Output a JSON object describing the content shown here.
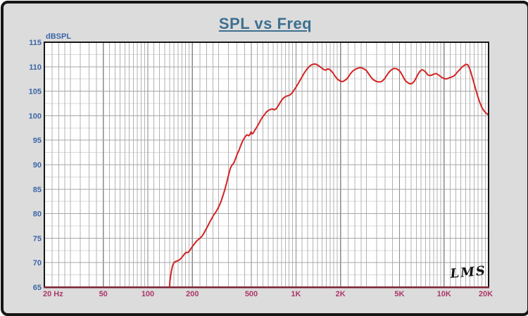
{
  "figure": {
    "background": "#dcdcdc",
    "border_color": "#161616"
  },
  "colors": {
    "title": "#3e7090",
    "y_tick_labels": "#3a66a8",
    "x_tick_labels": "#ab3769",
    "curve": "#d42222",
    "axis_baseline": "#7c2435"
  },
  "chart_data": {
    "type": "line",
    "title": "SPL vs Freq",
    "ylabel": "dBSPL",
    "xlabel": "Hz",
    "watermark": "LMS",
    "x_scale": "log",
    "xlim": [
      20,
      20000
    ],
    "ylim": [
      65,
      115
    ],
    "y_major_step": 5,
    "y_minor_step": 2.5,
    "grid": true,
    "legend": null,
    "x_ticks": [
      {
        "f": 20,
        "label": "20 Hz"
      },
      {
        "f": 50,
        "label": "50"
      },
      {
        "f": 100,
        "label": "100"
      },
      {
        "f": 200,
        "label": "200"
      },
      {
        "f": 500,
        "label": "500"
      },
      {
        "f": 1000,
        "label": "1K"
      },
      {
        "f": 2000,
        "label": "2K"
      },
      {
        "f": 5000,
        "label": "5K"
      },
      {
        "f": 10000,
        "label": "10K"
      },
      {
        "f": 20000,
        "label": "20K"
      }
    ],
    "y_ticks": [
      115,
      110,
      105,
      100,
      95,
      90,
      85,
      80,
      75,
      70,
      65
    ],
    "x_minor_per_decade": [
      1,
      1.1,
      1.2,
      1.3,
      1.4,
      1.5,
      1.6,
      1.7,
      1.8,
      1.9,
      2,
      2.25,
      2.5,
      2.75,
      3,
      3.5,
      4,
      4.5,
      5,
      5.5,
      6,
      6.5,
      7,
      7.5,
      8,
      8.5,
      9,
      9.5
    ],
    "series": [
      {
        "name": "SPL",
        "color": "#d42222",
        "points": [
          [
            140,
            65
          ],
          [
            141,
            66.3
          ],
          [
            142.5,
            67.3
          ],
          [
            144.5,
            68.4
          ],
          [
            147,
            69.4
          ],
          [
            150,
            70
          ],
          [
            154,
            70.25
          ],
          [
            158,
            70.35
          ],
          [
            163,
            70.55
          ],
          [
            168,
            70.9
          ],
          [
            173,
            71.4
          ],
          [
            178,
            71.9
          ],
          [
            182,
            72.1
          ],
          [
            186,
            72.05
          ],
          [
            191,
            72.4
          ],
          [
            196,
            72.9
          ],
          [
            201,
            73.4
          ],
          [
            207,
            73.9
          ],
          [
            213,
            74.4
          ],
          [
            219,
            74.7
          ],
          [
            225,
            75
          ],
          [
            232,
            75.4
          ],
          [
            239,
            76
          ],
          [
            246,
            76.7
          ],
          [
            254,
            77.5
          ],
          [
            262,
            78.3
          ],
          [
            270,
            79
          ],
          [
            278,
            79.7
          ],
          [
            286,
            80.2
          ],
          [
            294,
            80.8
          ],
          [
            302,
            81.5
          ],
          [
            311,
            82.4
          ],
          [
            320,
            83.5
          ],
          [
            330,
            84.8
          ],
          [
            340,
            86.2
          ],
          [
            350,
            87.8
          ],
          [
            360,
            89.2
          ],
          [
            370,
            89.9
          ],
          [
            380,
            90.3
          ],
          [
            394,
            91.5
          ],
          [
            403,
            92.3
          ],
          [
            412,
            92.9
          ],
          [
            425,
            94
          ],
          [
            438,
            94.9
          ],
          [
            452,
            95.6
          ],
          [
            466,
            96.1
          ],
          [
            480,
            95.9
          ],
          [
            490,
            96.2
          ],
          [
            498,
            96.7
          ],
          [
            506,
            96.3
          ],
          [
            516,
            96.5
          ],
          [
            527,
            97
          ],
          [
            545,
            97.7
          ],
          [
            562,
            98.4
          ],
          [
            580,
            99.2
          ],
          [
            598,
            99.8
          ],
          [
            616,
            100.3
          ],
          [
            634,
            100.8
          ],
          [
            655,
            101.1
          ],
          [
            674,
            101.3
          ],
          [
            695,
            101.35
          ],
          [
            716,
            101.2
          ],
          [
            740,
            101.5
          ],
          [
            762,
            102.1
          ],
          [
            786,
            102.8
          ],
          [
            811,
            103.4
          ],
          [
            838,
            103.8
          ],
          [
            862,
            104
          ],
          [
            890,
            104.1
          ],
          [
            917,
            104.3
          ],
          [
            945,
            104.7
          ],
          [
            975,
            105.3
          ],
          [
            1005,
            105.9
          ],
          [
            1037,
            106.6
          ],
          [
            1070,
            107.3
          ],
          [
            1103,
            108
          ],
          [
            1137,
            108.7
          ],
          [
            1173,
            109.3
          ],
          [
            1210,
            109.8
          ],
          [
            1247,
            110.2
          ],
          [
            1287,
            110.45
          ],
          [
            1326,
            110.55
          ],
          [
            1369,
            110.5
          ],
          [
            1410,
            110.3
          ],
          [
            1455,
            110
          ],
          [
            1500,
            109.7
          ],
          [
            1545,
            109.4
          ],
          [
            1590,
            109.3
          ],
          [
            1640,
            109.55
          ],
          [
            1690,
            109.45
          ],
          [
            1740,
            109.1
          ],
          [
            1790,
            108.6
          ],
          [
            1845,
            108
          ],
          [
            1900,
            107.5
          ],
          [
            1960,
            107.2
          ],
          [
            2020,
            107
          ],
          [
            2080,
            107
          ],
          [
            2140,
            107.2
          ],
          [
            2200,
            107.5
          ],
          [
            2270,
            108
          ],
          [
            2340,
            108.6
          ],
          [
            2414,
            109.1
          ],
          [
            2490,
            109.4
          ],
          [
            2568,
            109.6
          ],
          [
            2650,
            109.75
          ],
          [
            2732,
            109.8
          ],
          [
            2817,
            109.7
          ],
          [
            2906,
            109.5
          ],
          [
            2997,
            109.2
          ],
          [
            3091,
            108.6
          ],
          [
            3188,
            108
          ],
          [
            3288,
            107.5
          ],
          [
            3391,
            107.2
          ],
          [
            3497,
            107
          ],
          [
            3607,
            106.9
          ],
          [
            3720,
            106.9
          ],
          [
            3837,
            107.1
          ],
          [
            3957,
            107.5
          ],
          [
            4081,
            108.1
          ],
          [
            4209,
            108.7
          ],
          [
            4341,
            109.2
          ],
          [
            4477,
            109.5
          ],
          [
            4617,
            109.65
          ],
          [
            4762,
            109.6
          ],
          [
            4911,
            109.4
          ],
          [
            5065,
            109
          ],
          [
            5224,
            108.3
          ],
          [
            5388,
            107.5
          ],
          [
            5557,
            107
          ],
          [
            5731,
            106.7
          ],
          [
            5911,
            106.5
          ],
          [
            6096,
            106.6
          ],
          [
            6287,
            107
          ],
          [
            6484,
            107.7
          ],
          [
            6687,
            108.5
          ],
          [
            6897,
            109.1
          ],
          [
            7113,
            109.4
          ],
          [
            7336,
            109.2
          ],
          [
            7566,
            108.8
          ],
          [
            7803,
            108.3
          ],
          [
            8048,
            108.2
          ],
          [
            8300,
            108.3
          ],
          [
            8560,
            108.5
          ],
          [
            8829,
            108.6
          ],
          [
            9105,
            108.4
          ],
          [
            9391,
            108.1
          ],
          [
            9685,
            107.8
          ],
          [
            9988,
            107.6
          ],
          [
            10301,
            107.5
          ],
          [
            10624,
            107.6
          ],
          [
            10957,
            107.8
          ],
          [
            11300,
            107.9
          ],
          [
            11654,
            108.1
          ],
          [
            12019,
            108.5
          ],
          [
            12396,
            109
          ],
          [
            12784,
            109.4
          ],
          [
            13185,
            109.9
          ],
          [
            13598,
            110.2
          ],
          [
            14024,
            110.5
          ],
          [
            14463,
            110.4
          ],
          [
            14916,
            109.6
          ],
          [
            15383,
            108.3
          ],
          [
            15865,
            106.9
          ],
          [
            16362,
            105.4
          ],
          [
            16875,
            104
          ],
          [
            17404,
            102.8
          ],
          [
            17949,
            101.8
          ],
          [
            18511,
            101.1
          ],
          [
            19091,
            100.6
          ],
          [
            19689,
            100.3
          ],
          [
            20000,
            100.1
          ]
        ]
      }
    ]
  }
}
